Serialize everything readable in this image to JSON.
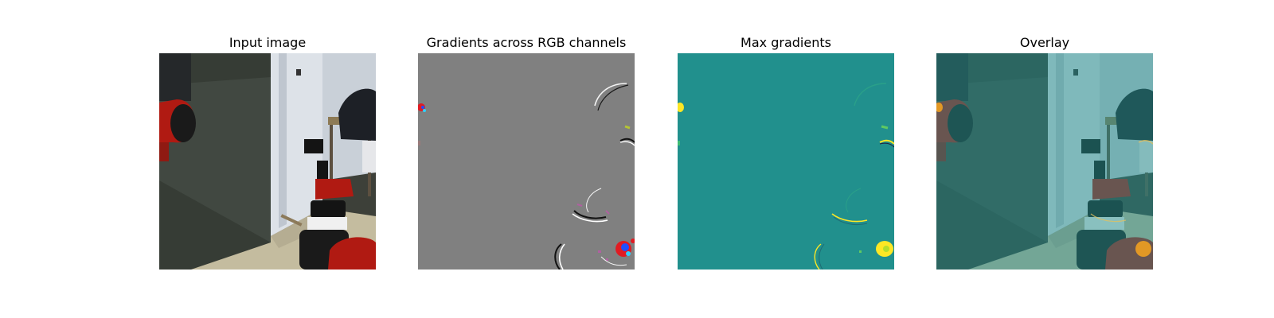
{
  "figure": {
    "panels": [
      {
        "title": "Input image"
      },
      {
        "title": "Gradients across RGB channels"
      },
      {
        "title": "Max gradients"
      },
      {
        "title": "Overlay"
      }
    ]
  },
  "colors": {
    "gradient_background": "#808080",
    "max_gradient_background": "#21908d",
    "max_gradient_highlight": "#fde725",
    "overlay_tint": "#21908d",
    "robot_red": "#b01a12"
  }
}
